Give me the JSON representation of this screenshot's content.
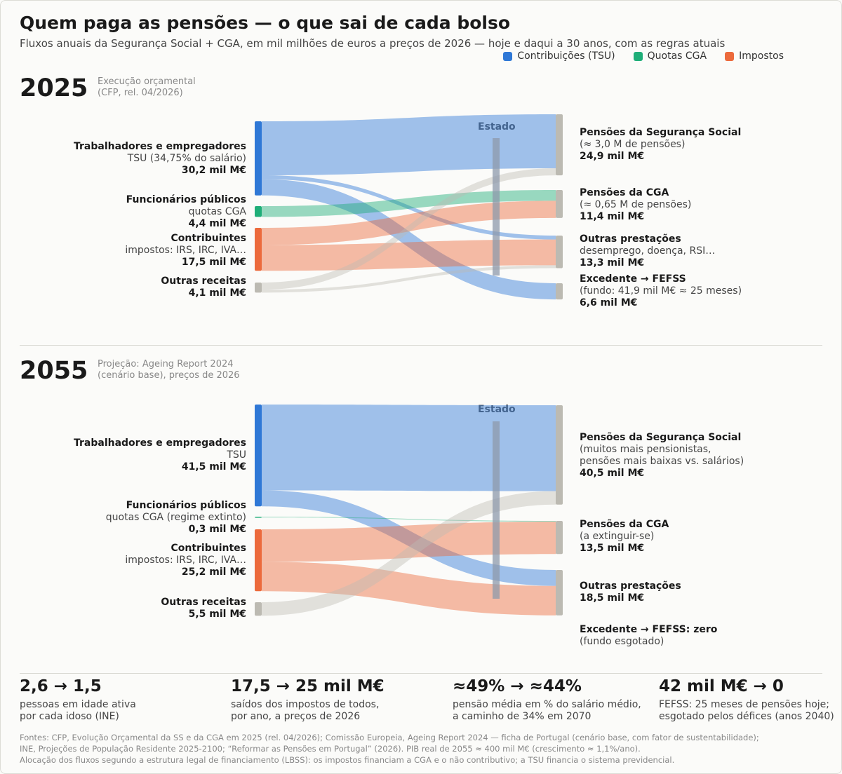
{
  "title": "Quem paga as pensões — o que sai de cada bolso",
  "subtitle": "Fluxos anuais da Segurança Social + CGA, em mil milhões de euros a preços de 2026 — hoje e daqui a 30 anos, com as regras atuais",
  "legend": [
    {
      "label": "Contribuições (TSU)",
      "color": "#2f78d6"
    },
    {
      "label": "Quotas CGA",
      "color": "#1fae78"
    },
    {
      "label": "Impostos",
      "color": "#ec6a3c"
    }
  ],
  "colors": {
    "tsu": "#2f78d6",
    "cga": "#1fae78",
    "tax": "#ec6a3c",
    "other": "#bcbab2",
    "state": "#8d9aab"
  },
  "panels": [
    {
      "year": "2025",
      "note": [
        "Execução orçamental",
        "(CFP, rel. 04/2026)"
      ],
      "state_label": "Estado",
      "sources": [
        {
          "name": "Trabalhadores e empregadores",
          "sub": [
            "TSU (34,75% do salário)"
          ],
          "value_label": "30,2 mil M€",
          "value": 30.2,
          "color": "tsu"
        },
        {
          "name": "Funcionários públicos",
          "sub": [
            "quotas CGA"
          ],
          "value_label": "4,4 mil M€",
          "value": 4.4,
          "color": "cga"
        },
        {
          "name": "Contribuintes",
          "sub": [
            "impostos: IRS, IRC, IVA…"
          ],
          "value_label": "17,5 mil M€",
          "value": 17.5,
          "color": "tax"
        },
        {
          "name": "Outras receitas",
          "sub": [],
          "value_label": "4,1 mil M€",
          "value": 4.1,
          "color": "other"
        }
      ],
      "targets": [
        {
          "name": "Pensões da Segurança Social",
          "sub": [
            "(≈ 3,0 M de pensões)"
          ],
          "value_label": "24,9 mil M€",
          "value": 24.9
        },
        {
          "name": "Pensões da CGA",
          "sub": [
            "(≈ 0,65 M de pensões)"
          ],
          "value_label": "11,4 mil M€",
          "value": 11.4
        },
        {
          "name": "Outras prestações",
          "sub": [
            "desemprego, doença, RSI…"
          ],
          "value_label": "13,3 mil M€",
          "value": 13.3
        },
        {
          "name": "Excedente → FEFSS",
          "sub": [
            "(fundo: 41,9 mil M€ ≈ 25 meses)"
          ],
          "value_label": "6,6 mil M€",
          "value": 6.6
        }
      ],
      "flows": [
        {
          "source": 0,
          "target": 0,
          "value": 22.0
        },
        {
          "source": 0,
          "target": 2,
          "value": 1.6
        },
        {
          "source": 0,
          "target": 3,
          "value": 6.6
        },
        {
          "source": 1,
          "target": 1,
          "value": 4.4
        },
        {
          "source": 2,
          "target": 1,
          "value": 7.0
        },
        {
          "source": 2,
          "target": 2,
          "value": 10.5
        },
        {
          "source": 3,
          "target": 0,
          "value": 2.9
        },
        {
          "source": 3,
          "target": 2,
          "value": 1.2
        }
      ]
    },
    {
      "year": "2055",
      "note": [
        "Projeção: Ageing Report 2024",
        "(cenário base), preços de 2026"
      ],
      "state_label": "Estado",
      "sources": [
        {
          "name": "Trabalhadores e empregadores",
          "sub": [
            "TSU"
          ],
          "value_label": "41,5 mil M€",
          "value": 41.5,
          "color": "tsu"
        },
        {
          "name": "Funcionários públicos",
          "sub": [
            "quotas CGA (regime extinto)"
          ],
          "value_label": "0,3 mil M€",
          "value": 0.3,
          "color": "cga"
        },
        {
          "name": "Contribuintes",
          "sub": [
            "impostos: IRS, IRC, IVA…"
          ],
          "value_label": "25,2 mil M€",
          "value": 25.2,
          "color": "tax"
        },
        {
          "name": "Outras receitas",
          "sub": [],
          "value_label": "5,5 mil M€",
          "value": 5.5,
          "color": "other"
        }
      ],
      "targets": [
        {
          "name": "Pensões da Segurança Social",
          "sub": [
            "(muitos mais pensionistas,",
            "pensões mais baixas vs. salários)"
          ],
          "value_label": "40,5 mil M€",
          "value": 40.5
        },
        {
          "name": "Pensões da CGA",
          "sub": [
            "(a extinguir-se)"
          ],
          "value_label": "13,5 mil M€",
          "value": 13.5
        },
        {
          "name": "Outras prestações",
          "sub": [],
          "value_label": "18,5 mil M€",
          "value": 18.5
        },
        {
          "name": "Excedente → FEFSS: zero",
          "sub": [
            "(fundo esgotado)"
          ],
          "value_label": "",
          "value": 0
        }
      ],
      "flows": [
        {
          "source": 0,
          "target": 0,
          "value": 35.0
        },
        {
          "source": 0,
          "target": 2,
          "value": 6.5
        },
        {
          "source": 1,
          "target": 1,
          "value": 0.3
        },
        {
          "source": 2,
          "target": 1,
          "value": 13.2
        },
        {
          "source": 2,
          "target": 2,
          "value": 12.0
        },
        {
          "source": 3,
          "target": 0,
          "value": 5.5
        }
      ]
    }
  ],
  "stats": [
    {
      "big": "2,6 → 1,5",
      "desc": [
        "pessoas em idade ativa",
        "por cada idoso (INE)"
      ]
    },
    {
      "big": "17,5 → 25 mil M€",
      "desc": [
        "saídos dos impostos de todos,",
        "por ano, a preços de 2026"
      ]
    },
    {
      "big": "≈49% → ≈44%",
      "desc": [
        "pensão média em % do salário médio,",
        "a caminho de 34% em 2070"
      ]
    },
    {
      "big": "42 mil M€ → 0",
      "desc": [
        "FEFSS: 25 meses de pensões hoje;",
        "esgotado pelos défices (anos 2040)"
      ]
    }
  ],
  "sources_text": [
    "Fontes: CFP, Evolução Orçamental da SS e da CGA em 2025 (rel. 04/2026); Comissão Europeia, Ageing Report 2024 — ficha de Portugal (cenário base, com fator de sustentabilidade);",
    "INE, Projeções de População Residente 2025-2100; “Reformar as Pensões em Portugal” (2026). PIB real de 2055 ≈ 400 mil M€ (crescimento ≈ 1,1%/ano).",
    "Alocação dos fluxos segundo a estrutura legal de financiamento (LBSS): os impostos financiam a CGA e o não contributivo; a TSU financia o sistema previdencial."
  ]
}
